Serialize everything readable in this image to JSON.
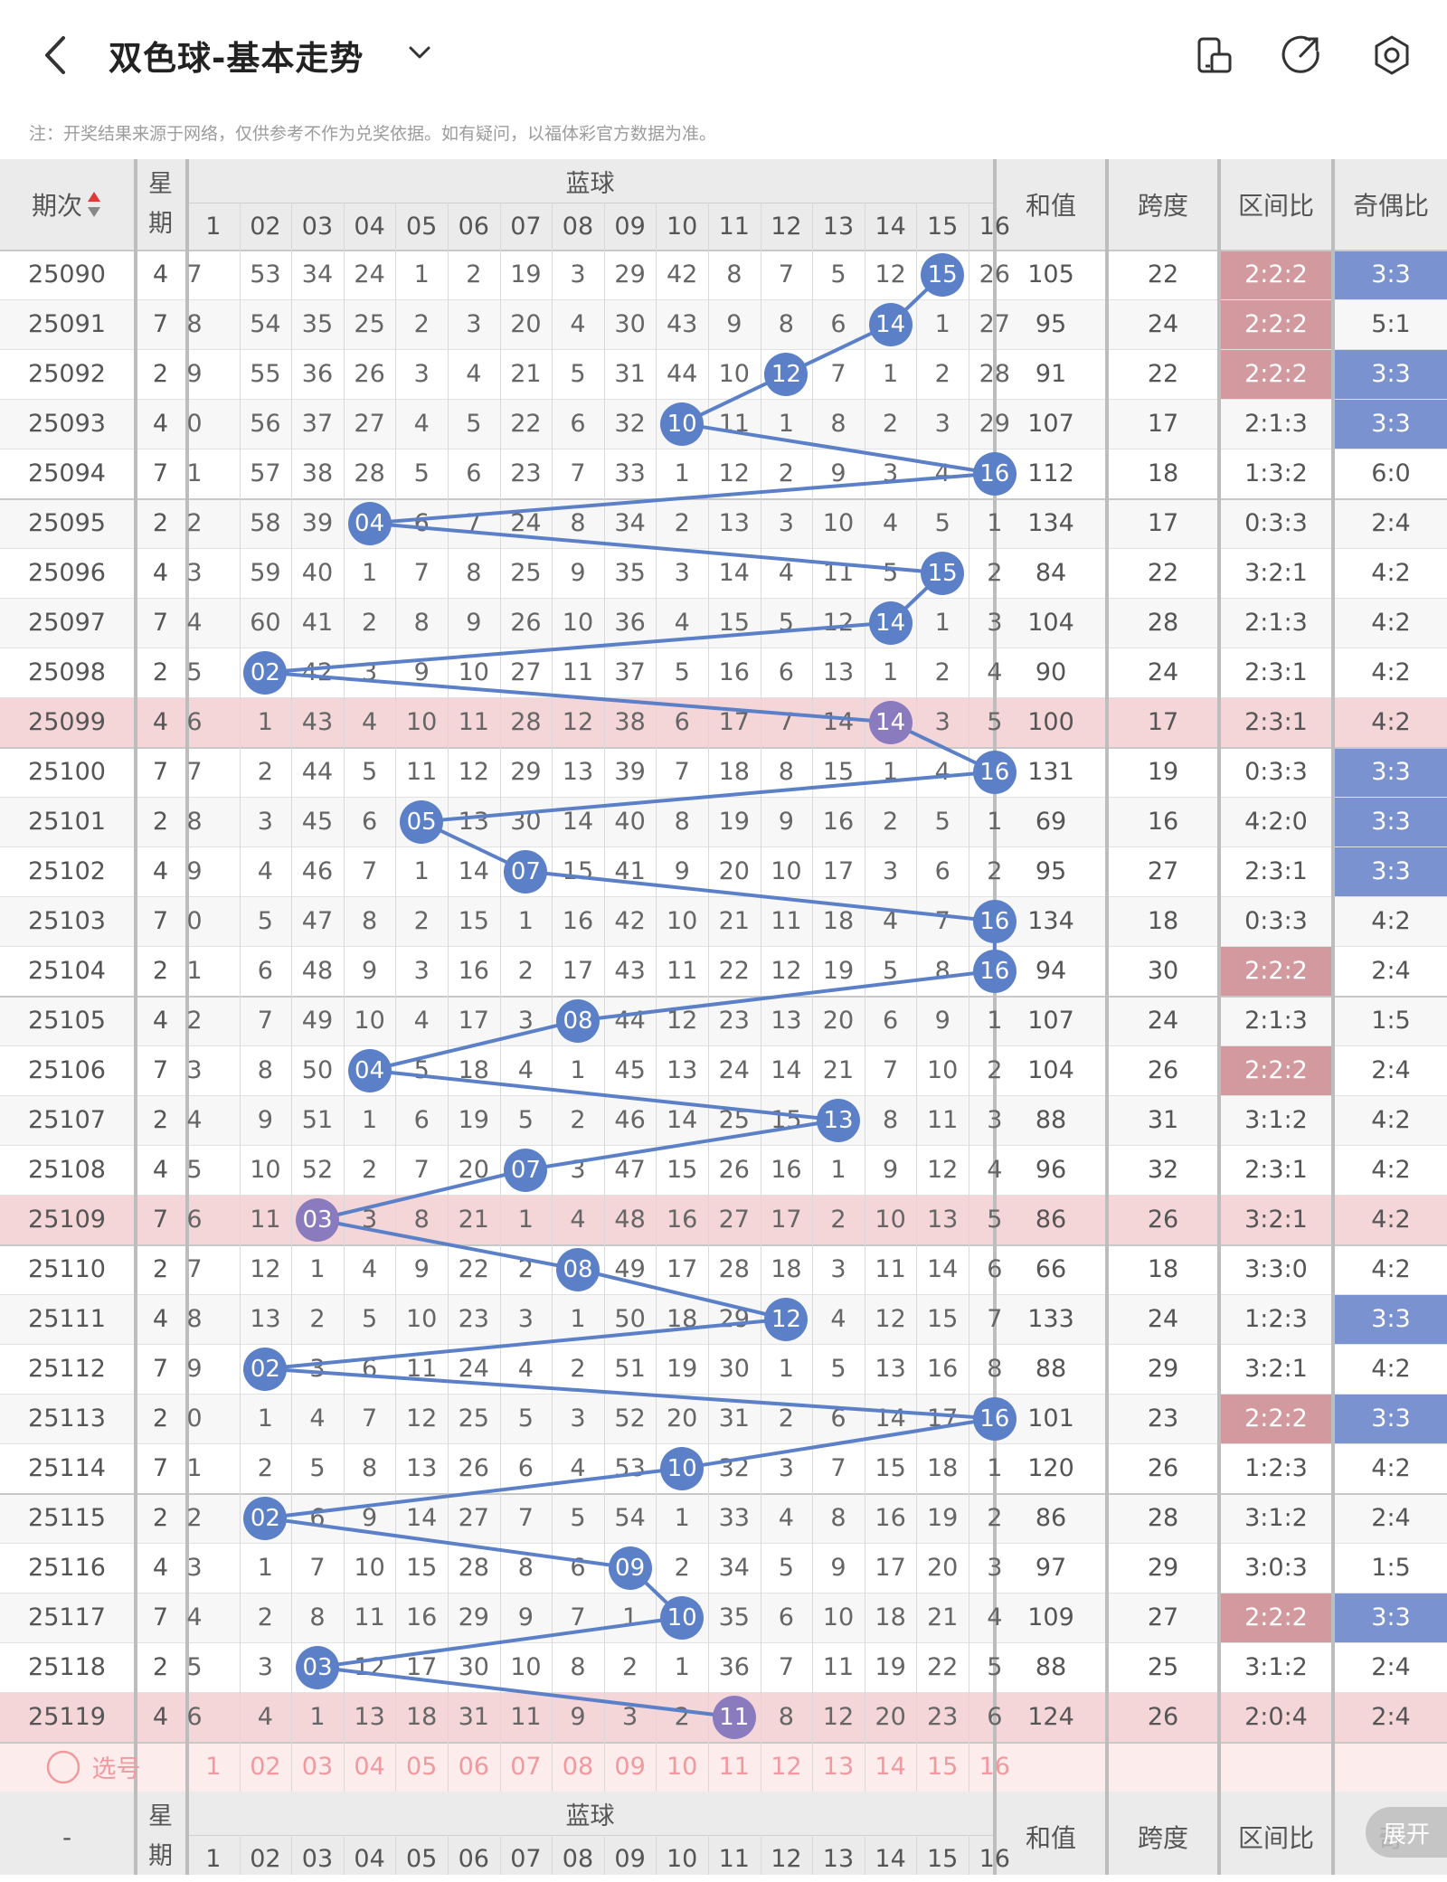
{
  "header": {
    "title": "双色球-基本走势",
    "back_icon": "back-arrow-icon",
    "dropdown_icon": "chevron-down-icon",
    "icons": [
      "phone-icon",
      "share-icon",
      "settings-icon"
    ]
  },
  "note": "注：开奖结果来源于网络，仅供参考不作为兑奖依据。如有疑问，以福体彩官方数据为准。",
  "table_header": {
    "period": "期次",
    "sort_icon": "sort-arrows-icon",
    "weekday": "星期",
    "blue_group": "蓝球",
    "columns": [
      "1",
      "02",
      "03",
      "04",
      "05",
      "06",
      "07",
      "08",
      "09",
      "10",
      "11",
      "12",
      "13",
      "14",
      "15",
      "16"
    ],
    "sum": "和值",
    "span": "跨度",
    "zone_ratio": "区间比",
    "odd_even": "奇偶比"
  },
  "rows": [
    {
      "period": "25090",
      "week": "4",
      "cells": [
        "7",
        "53",
        "34",
        "24",
        "1",
        "2",
        "19",
        "3",
        "29",
        "42",
        "8",
        "7",
        "5",
        "12",
        "15",
        "26"
      ],
      "blue": 15,
      "sum": "105",
      "span": "22",
      "zone": "2:2:2",
      "oe": "3:3",
      "zone_hl": true,
      "oe_hl": true,
      "row_hl": false
    },
    {
      "period": "25091",
      "week": "7",
      "cells": [
        "8",
        "54",
        "35",
        "25",
        "2",
        "3",
        "20",
        "4",
        "30",
        "43",
        "9",
        "8",
        "6",
        "14",
        "1",
        "27"
      ],
      "blue": 14,
      "sum": "95",
      "span": "24",
      "zone": "2:2:2",
      "oe": "5:1",
      "zone_hl": true,
      "oe_hl": false,
      "row_hl": false
    },
    {
      "period": "25092",
      "week": "2",
      "cells": [
        "9",
        "55",
        "36",
        "26",
        "3",
        "4",
        "21",
        "5",
        "31",
        "44",
        "10",
        "12",
        "7",
        "1",
        "2",
        "28"
      ],
      "blue": 12,
      "sum": "91",
      "span": "22",
      "zone": "2:2:2",
      "oe": "3:3",
      "zone_hl": true,
      "oe_hl": true,
      "row_hl": false
    },
    {
      "period": "25093",
      "week": "4",
      "cells": [
        "0",
        "56",
        "37",
        "27",
        "4",
        "5",
        "22",
        "6",
        "32",
        "10",
        "11",
        "1",
        "8",
        "2",
        "3",
        "29"
      ],
      "blue": 10,
      "sum": "107",
      "span": "17",
      "zone": "2:1:3",
      "oe": "3:3",
      "zone_hl": false,
      "oe_hl": true,
      "row_hl": false
    },
    {
      "period": "25094",
      "week": "7",
      "cells": [
        "1",
        "57",
        "38",
        "28",
        "5",
        "6",
        "23",
        "7",
        "33",
        "1",
        "12",
        "2",
        "9",
        "3",
        "4",
        "16"
      ],
      "blue": 16,
      "sum": "112",
      "span": "18",
      "zone": "1:3:2",
      "oe": "6:0",
      "zone_hl": false,
      "oe_hl": false,
      "row_hl": false
    },
    {
      "period": "25095",
      "week": "2",
      "cells": [
        "2",
        "58",
        "39",
        "04",
        "6",
        "7",
        "24",
        "8",
        "34",
        "2",
        "13",
        "3",
        "10",
        "4",
        "5",
        "1"
      ],
      "blue": 4,
      "sum": "134",
      "span": "17",
      "zone": "0:3:3",
      "oe": "2:4",
      "zone_hl": false,
      "oe_hl": false,
      "row_hl": false
    },
    {
      "period": "25096",
      "week": "4",
      "cells": [
        "3",
        "59",
        "40",
        "1",
        "7",
        "8",
        "25",
        "9",
        "35",
        "3",
        "14",
        "4",
        "11",
        "5",
        "15",
        "2"
      ],
      "blue": 15,
      "sum": "84",
      "span": "22",
      "zone": "3:2:1",
      "oe": "4:2",
      "zone_hl": false,
      "oe_hl": false,
      "row_hl": false
    },
    {
      "period": "25097",
      "week": "7",
      "cells": [
        "4",
        "60",
        "41",
        "2",
        "8",
        "9",
        "26",
        "10",
        "36",
        "4",
        "15",
        "5",
        "12",
        "14",
        "1",
        "3"
      ],
      "blue": 14,
      "sum": "104",
      "span": "28",
      "zone": "2:1:3",
      "oe": "4:2",
      "zone_hl": false,
      "oe_hl": false,
      "row_hl": false
    },
    {
      "period": "25098",
      "week": "2",
      "cells": [
        "5",
        "02",
        "42",
        "3",
        "9",
        "10",
        "27",
        "11",
        "37",
        "5",
        "16",
        "6",
        "13",
        "1",
        "2",
        "4"
      ],
      "blue": 2,
      "sum": "90",
      "span": "24",
      "zone": "2:3:1",
      "oe": "4:2",
      "zone_hl": false,
      "oe_hl": false,
      "row_hl": false
    },
    {
      "period": "25099",
      "week": "4",
      "cells": [
        "6",
        "1",
        "43",
        "4",
        "10",
        "11",
        "28",
        "12",
        "38",
        "6",
        "17",
        "7",
        "14",
        "14",
        "3",
        "5"
      ],
      "blue": 14,
      "sum": "100",
      "span": "17",
      "zone": "2:3:1",
      "oe": "4:2",
      "zone_hl": false,
      "oe_hl": false,
      "row_hl": true
    },
    {
      "period": "25100",
      "week": "7",
      "cells": [
        "7",
        "2",
        "44",
        "5",
        "11",
        "12",
        "29",
        "13",
        "39",
        "7",
        "18",
        "8",
        "15",
        "1",
        "4",
        "16"
      ],
      "blue": 16,
      "sum": "131",
      "span": "19",
      "zone": "0:3:3",
      "oe": "3:3",
      "zone_hl": false,
      "oe_hl": true,
      "row_hl": false
    },
    {
      "period": "25101",
      "week": "2",
      "cells": [
        "8",
        "3",
        "45",
        "6",
        "05",
        "13",
        "30",
        "14",
        "40",
        "8",
        "19",
        "9",
        "16",
        "2",
        "5",
        "1"
      ],
      "blue": 5,
      "sum": "69",
      "span": "16",
      "zone": "4:2:0",
      "oe": "3:3",
      "zone_hl": false,
      "oe_hl": true,
      "row_hl": false
    },
    {
      "period": "25102",
      "week": "4",
      "cells": [
        "9",
        "4",
        "46",
        "7",
        "1",
        "14",
        "07",
        "15",
        "41",
        "9",
        "20",
        "10",
        "17",
        "3",
        "6",
        "2"
      ],
      "blue": 7,
      "sum": "95",
      "span": "27",
      "zone": "2:3:1",
      "oe": "3:3",
      "zone_hl": false,
      "oe_hl": true,
      "row_hl": false
    },
    {
      "period": "25103",
      "week": "7",
      "cells": [
        "0",
        "5",
        "47",
        "8",
        "2",
        "15",
        "1",
        "16",
        "42",
        "10",
        "21",
        "11",
        "18",
        "4",
        "7",
        "16"
      ],
      "blue": 16,
      "sum": "134",
      "span": "18",
      "zone": "0:3:3",
      "oe": "4:2",
      "zone_hl": false,
      "oe_hl": false,
      "row_hl": false
    },
    {
      "period": "25104",
      "week": "2",
      "cells": [
        "1",
        "6",
        "48",
        "9",
        "3",
        "16",
        "2",
        "17",
        "43",
        "11",
        "22",
        "12",
        "19",
        "5",
        "8",
        "16"
      ],
      "blue": 16,
      "sum": "94",
      "span": "30",
      "zone": "2:2:2",
      "oe": "2:4",
      "zone_hl": true,
      "oe_hl": false,
      "row_hl": false
    },
    {
      "period": "25105",
      "week": "4",
      "cells": [
        "2",
        "7",
        "49",
        "10",
        "4",
        "17",
        "3",
        "08",
        "44",
        "12",
        "23",
        "13",
        "20",
        "6",
        "9",
        "1"
      ],
      "blue": 8,
      "sum": "107",
      "span": "24",
      "zone": "2:1:3",
      "oe": "1:5",
      "zone_hl": false,
      "oe_hl": false,
      "row_hl": false
    },
    {
      "period": "25106",
      "week": "7",
      "cells": [
        "3",
        "8",
        "50",
        "04",
        "5",
        "18",
        "4",
        "1",
        "45",
        "13",
        "24",
        "14",
        "21",
        "7",
        "10",
        "2"
      ],
      "blue": 4,
      "sum": "104",
      "span": "26",
      "zone": "2:2:2",
      "oe": "2:4",
      "zone_hl": true,
      "oe_hl": false,
      "row_hl": false
    },
    {
      "period": "25107",
      "week": "2",
      "cells": [
        "4",
        "9",
        "51",
        "1",
        "6",
        "19",
        "5",
        "2",
        "46",
        "14",
        "25",
        "15",
        "13",
        "8",
        "11",
        "3"
      ],
      "blue": 13,
      "sum": "88",
      "span": "31",
      "zone": "3:1:2",
      "oe": "4:2",
      "zone_hl": false,
      "oe_hl": false,
      "row_hl": false
    },
    {
      "period": "25108",
      "week": "4",
      "cells": [
        "5",
        "10",
        "52",
        "2",
        "7",
        "20",
        "07",
        "3",
        "47",
        "15",
        "26",
        "16",
        "1",
        "9",
        "12",
        "4"
      ],
      "blue": 7,
      "sum": "96",
      "span": "32",
      "zone": "2:3:1",
      "oe": "4:2",
      "zone_hl": false,
      "oe_hl": false,
      "row_hl": false
    },
    {
      "period": "25109",
      "week": "7",
      "cells": [
        "6",
        "11",
        "03",
        "3",
        "8",
        "21",
        "1",
        "4",
        "48",
        "16",
        "27",
        "17",
        "2",
        "10",
        "13",
        "5"
      ],
      "blue": 3,
      "sum": "86",
      "span": "26",
      "zone": "3:2:1",
      "oe": "4:2",
      "zone_hl": false,
      "oe_hl": false,
      "row_hl": true
    },
    {
      "period": "25110",
      "week": "2",
      "cells": [
        "7",
        "12",
        "1",
        "4",
        "9",
        "22",
        "2",
        "08",
        "49",
        "17",
        "28",
        "18",
        "3",
        "11",
        "14",
        "6"
      ],
      "blue": 8,
      "sum": "66",
      "span": "18",
      "zone": "3:3:0",
      "oe": "4:2",
      "zone_hl": false,
      "oe_hl": false,
      "row_hl": false
    },
    {
      "period": "25111",
      "week": "4",
      "cells": [
        "8",
        "13",
        "2",
        "5",
        "10",
        "23",
        "3",
        "1",
        "50",
        "18",
        "29",
        "12",
        "4",
        "12",
        "15",
        "7"
      ],
      "blue": 12,
      "sum": "133",
      "span": "24",
      "zone": "1:2:3",
      "oe": "3:3",
      "zone_hl": false,
      "oe_hl": true,
      "row_hl": false
    },
    {
      "period": "25112",
      "week": "7",
      "cells": [
        "9",
        "02",
        "3",
        "6",
        "11",
        "24",
        "4",
        "2",
        "51",
        "19",
        "30",
        "1",
        "5",
        "13",
        "16",
        "8"
      ],
      "blue": 2,
      "sum": "88",
      "span": "29",
      "zone": "3:2:1",
      "oe": "4:2",
      "zone_hl": false,
      "oe_hl": false,
      "row_hl": false
    },
    {
      "period": "25113",
      "week": "2",
      "cells": [
        "0",
        "1",
        "4",
        "7",
        "12",
        "25",
        "5",
        "3",
        "52",
        "20",
        "31",
        "2",
        "6",
        "14",
        "17",
        "16"
      ],
      "blue": 16,
      "sum": "101",
      "span": "23",
      "zone": "2:2:2",
      "oe": "3:3",
      "zone_hl": true,
      "oe_hl": true,
      "row_hl": false
    },
    {
      "period": "25114",
      "week": "7",
      "cells": [
        "1",
        "2",
        "5",
        "8",
        "13",
        "26",
        "6",
        "4",
        "53",
        "10",
        "32",
        "3",
        "7",
        "15",
        "18",
        "1"
      ],
      "blue": 10,
      "sum": "120",
      "span": "26",
      "zone": "1:2:3",
      "oe": "4:2",
      "zone_hl": false,
      "oe_hl": false,
      "row_hl": false
    },
    {
      "period": "25115",
      "week": "2",
      "cells": [
        "2",
        "02",
        "6",
        "9",
        "14",
        "27",
        "7",
        "5",
        "54",
        "1",
        "33",
        "4",
        "8",
        "16",
        "19",
        "2"
      ],
      "blue": 2,
      "sum": "86",
      "span": "28",
      "zone": "3:1:2",
      "oe": "2:4",
      "zone_hl": false,
      "oe_hl": false,
      "row_hl": false
    },
    {
      "period": "25116",
      "week": "4",
      "cells": [
        "3",
        "1",
        "7",
        "10",
        "15",
        "28",
        "8",
        "6",
        "09",
        "2",
        "34",
        "5",
        "9",
        "17",
        "20",
        "3"
      ],
      "blue": 9,
      "sum": "97",
      "span": "29",
      "zone": "3:0:3",
      "oe": "1:5",
      "zone_hl": false,
      "oe_hl": false,
      "row_hl": false
    },
    {
      "period": "25117",
      "week": "7",
      "cells": [
        "4",
        "2",
        "8",
        "11",
        "16",
        "29",
        "9",
        "7",
        "1",
        "10",
        "35",
        "6",
        "10",
        "18",
        "21",
        "4"
      ],
      "blue": 10,
      "sum": "109",
      "span": "27",
      "zone": "2:2:2",
      "oe": "3:3",
      "zone_hl": true,
      "oe_hl": true,
      "row_hl": false
    },
    {
      "period": "25118",
      "week": "2",
      "cells": [
        "5",
        "3",
        "03",
        "12",
        "17",
        "30",
        "10",
        "8",
        "2",
        "1",
        "36",
        "7",
        "11",
        "19",
        "22",
        "5"
      ],
      "blue": 3,
      "sum": "88",
      "span": "25",
      "zone": "3:1:2",
      "oe": "2:4",
      "zone_hl": false,
      "oe_hl": false,
      "row_hl": false
    },
    {
      "period": "25119",
      "week": "4",
      "cells": [
        "6",
        "4",
        "1",
        "13",
        "18",
        "31",
        "11",
        "9",
        "3",
        "2",
        "11",
        "8",
        "12",
        "20",
        "23",
        "6"
      ],
      "blue": 11,
      "sum": "124",
      "span": "26",
      "zone": "2:0:4",
      "oe": "2:4",
      "zone_hl": false,
      "oe_hl": false,
      "row_hl": true
    }
  ],
  "select_row": {
    "label": "选号",
    "icon": "circle-select-icon",
    "numbers": [
      "1",
      "02",
      "03",
      "04",
      "05",
      "06",
      "07",
      "08",
      "09",
      "10",
      "11",
      "12",
      "13",
      "14",
      "15",
      "16"
    ]
  },
  "footer_header": {
    "period": "-",
    "weekday": "星期",
    "blue_group": "蓝球",
    "columns": [
      "1",
      "02",
      "03",
      "04",
      "05",
      "06",
      "07",
      "08",
      "09",
      "10",
      "11",
      "12",
      "13",
      "14",
      "15",
      "16"
    ],
    "sum": "和值",
    "span": "跨度",
    "zone_ratio": "区间比",
    "odd_even": "奇"
  },
  "expand_button": "展开",
  "colors": {
    "ball": "#5b80c8",
    "ball_highlight": "#8a7bbf",
    "line": "#5b80c8",
    "row_highlight": "#f4d5d8",
    "zone_highlight": "#d29a9f",
    "oe_highlight": "#7a92cf",
    "sort_up": "#e53935",
    "header_bg": "#ebebeb",
    "select_bg": "#fdecec",
    "select_text": "#f09aa0"
  }
}
